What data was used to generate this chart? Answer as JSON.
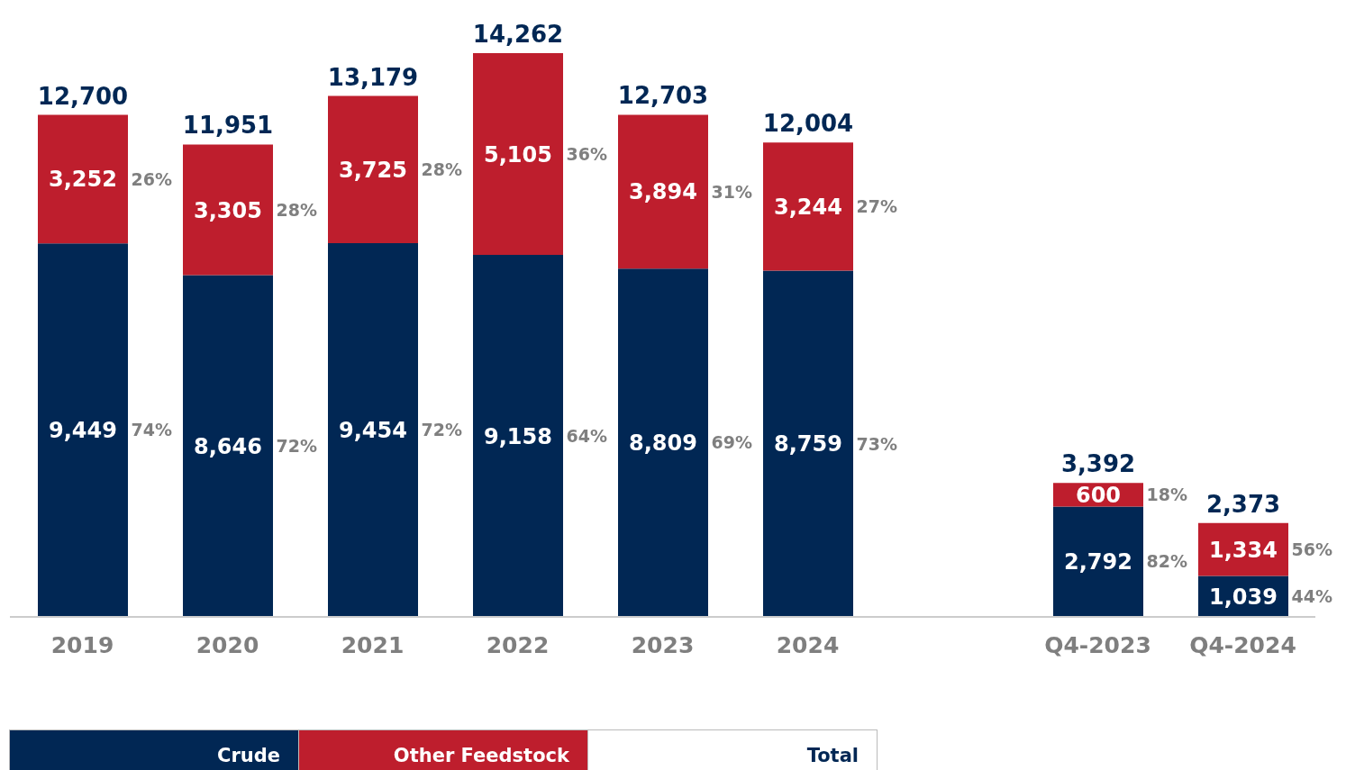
{
  "chart_data": {
    "type": "bar",
    "stacked": true,
    "categories": [
      "2019",
      "2020",
      "2021",
      "2022",
      "2023",
      "2024",
      null,
      "Q4-2023",
      "Q4-2024"
    ],
    "series": [
      {
        "name": "Crude",
        "color": "#012754",
        "values": [
          9449,
          8646,
          9454,
          9158,
          8809,
          8759,
          null,
          2792,
          1039
        ],
        "value_labels": [
          "9,449",
          "8,646",
          "9,454",
          "9,158",
          "8,809",
          "8,759",
          null,
          "2,792",
          "1,039"
        ]
      },
      {
        "name": "Other Feedstock",
        "color": "#be1e2d",
        "values": [
          3252,
          3305,
          3725,
          5105,
          3894,
          3244,
          null,
          600,
          1334
        ],
        "value_labels": [
          "3,252",
          "3,305",
          "3,725",
          "5,105",
          "3,894",
          "3,244",
          null,
          "600",
          "1,334"
        ]
      }
    ],
    "totals": [
      "12,700",
      "11,951",
      "13,179",
      "14,262",
      "12,703",
      "12,004",
      null,
      "3,392",
      "2,373"
    ],
    "tick_labels": "x",
    "grid": false,
    "legend": "bottom",
    "annotations": [
      "74%",
      "26%",
      "72%",
      "28%",
      "72%",
      "28%",
      "64%",
      "36%",
      "69%",
      "31%",
      "73%",
      "27%",
      "82%",
      "18%",
      "44%",
      "56%",
      "Total"
    ]
  }
}
